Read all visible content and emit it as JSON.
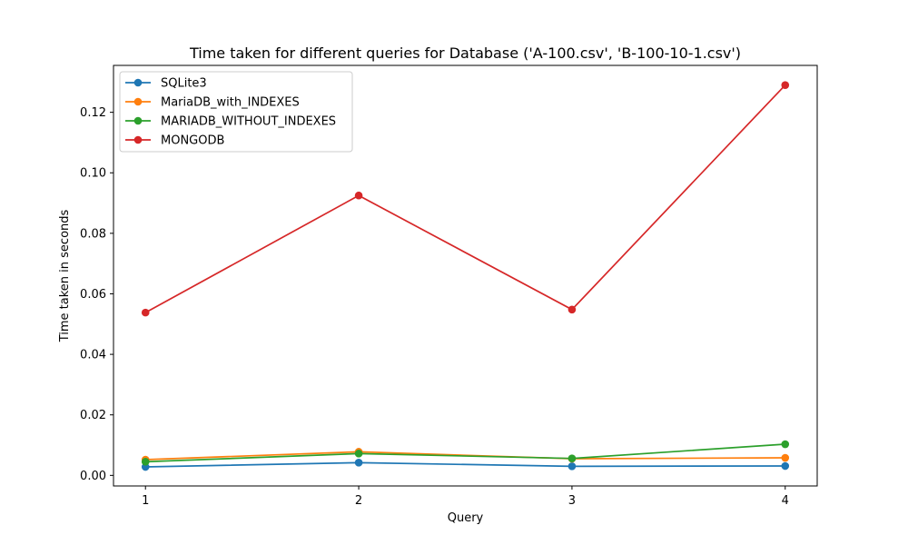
{
  "chart_data": {
    "type": "line",
    "title": "Time taken for different queries for Database ('A-100.csv', 'B-100-10-1.csv')",
    "xlabel": "Query",
    "ylabel": "Time taken in seconds",
    "x": [
      1,
      2,
      3,
      4
    ],
    "xtick_labels": [
      "1",
      "2",
      "3",
      "4"
    ],
    "yticks": [
      0.0,
      0.02,
      0.04,
      0.06,
      0.08,
      0.1,
      0.12
    ],
    "ytick_labels": [
      "0.00",
      "0.02",
      "0.04",
      "0.06",
      "0.08",
      "0.10",
      "0.12"
    ],
    "xlim": [
      0.85,
      4.15
    ],
    "ylim": [
      -0.0035,
      0.1355
    ],
    "grid": false,
    "legend_position": "top-left",
    "series": [
      {
        "name": "SQLite3",
        "color": "#1f77b4",
        "values": [
          0.0028,
          0.0042,
          0.003,
          0.0031
        ]
      },
      {
        "name": "MariaDB_with_INDEXES",
        "color": "#ff7f0e",
        "values": [
          0.0052,
          0.0078,
          0.0055,
          0.0058
        ]
      },
      {
        "name": "MARIADB_WITHOUT_INDEXES",
        "color": "#2ca02c",
        "values": [
          0.0045,
          0.0072,
          0.0056,
          0.0103
        ]
      },
      {
        "name": "MONGODB",
        "color": "#d62728",
        "values": [
          0.0538,
          0.0925,
          0.0548,
          0.129
        ]
      }
    ]
  }
}
